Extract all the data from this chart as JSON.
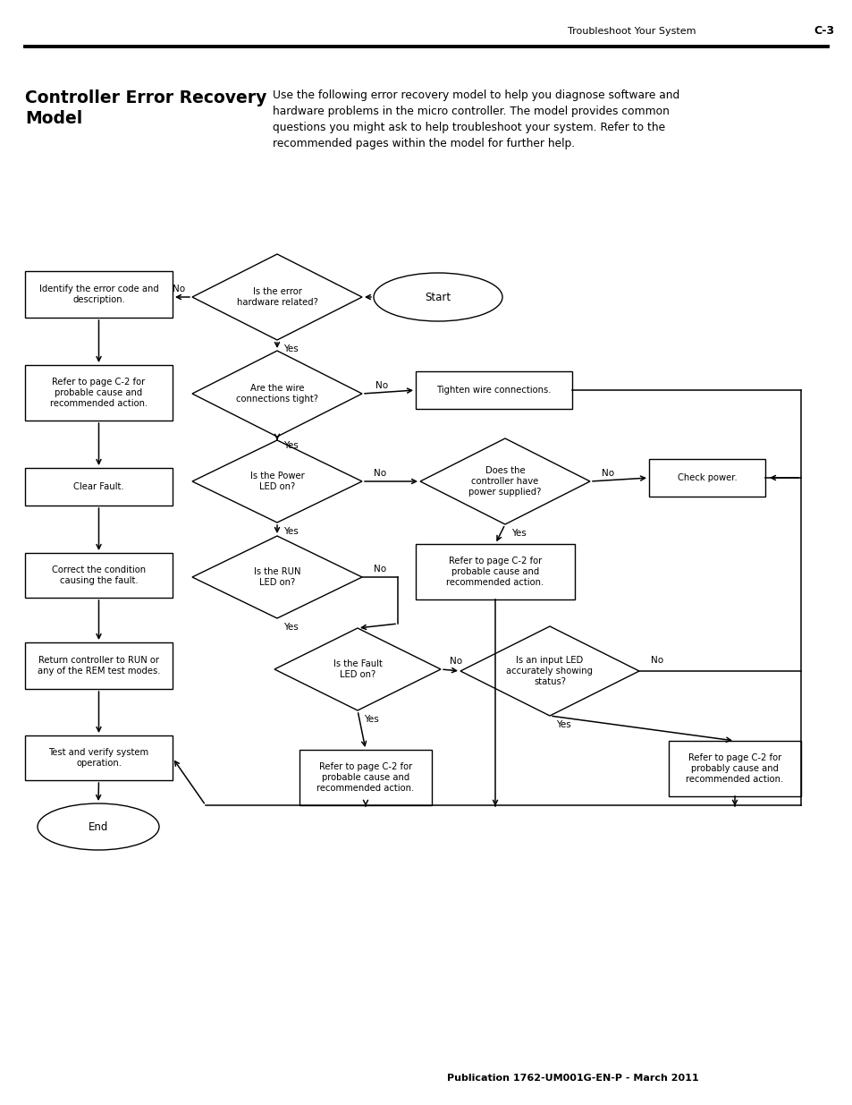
{
  "page_header_left": "Troubleshoot Your System",
  "page_header_right": "C-3",
  "title": "Controller Error Recovery\nModel",
  "description": "Use the following error recovery model to help you diagnose software and\nhardware problems in the micro controller. The model provides common\nquestions you might ask to help troubleshoot your system. Refer to the\nrecommended pages within the model for further help.",
  "footer": "Publication 1762-UM001G-EN-P - March 2011",
  "bg_color": "#ffffff",
  "line_color": "#000000",
  "text_color": "#000000"
}
